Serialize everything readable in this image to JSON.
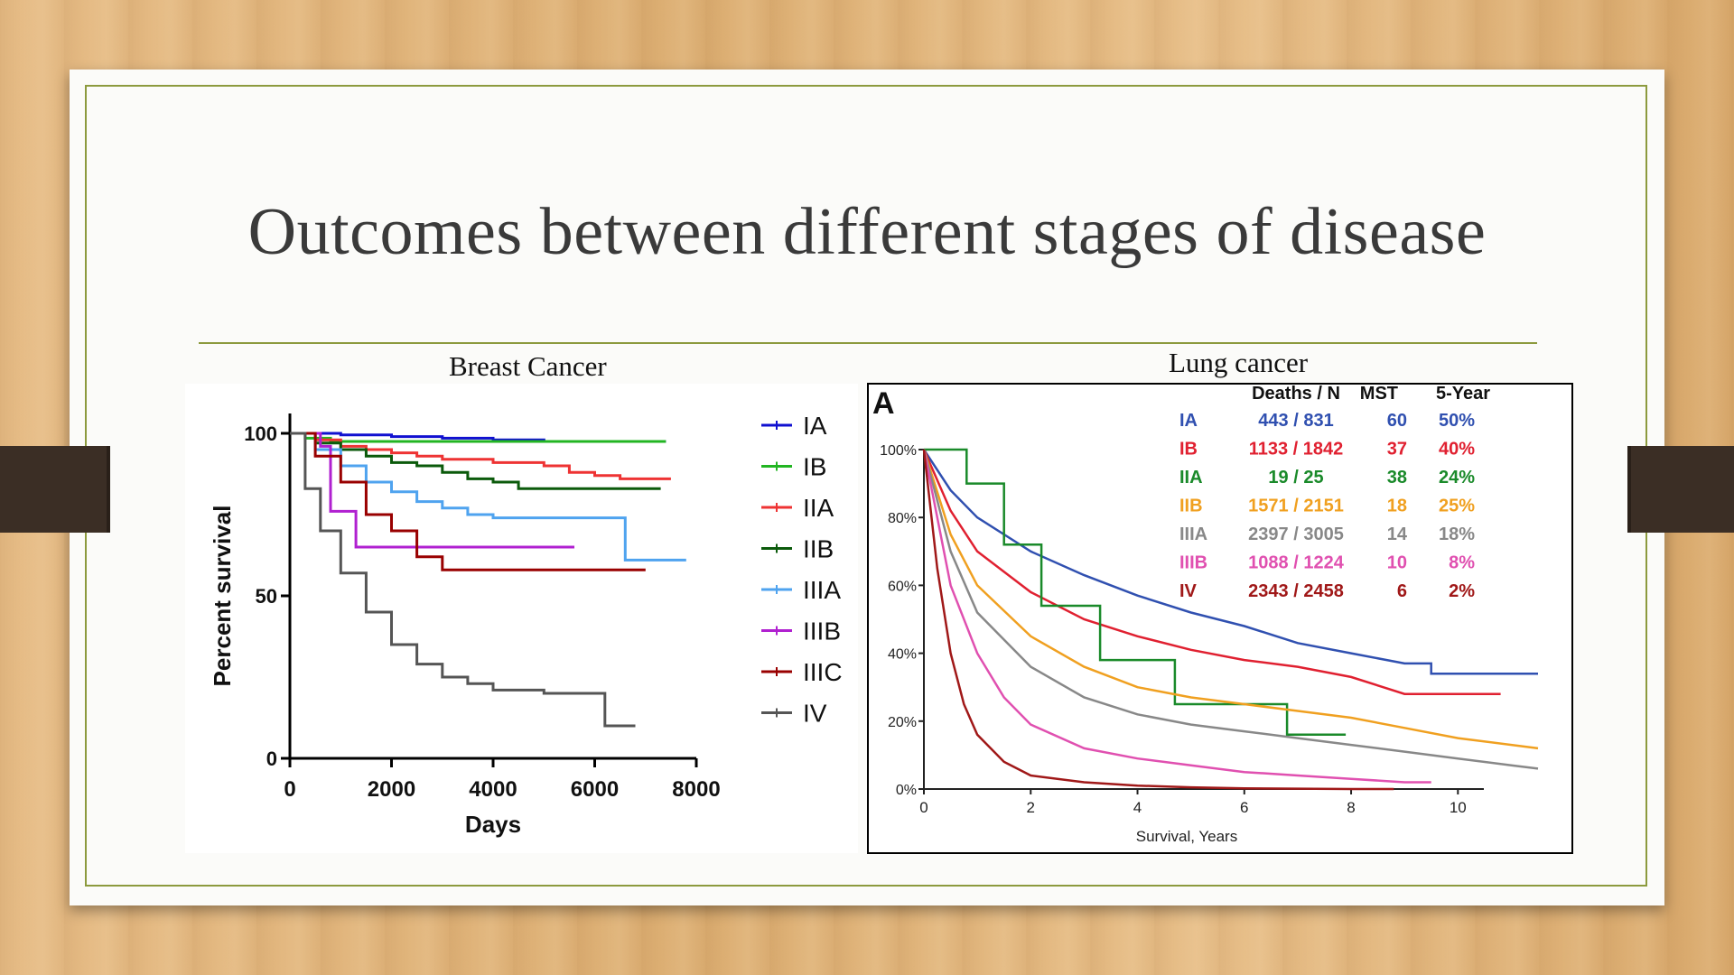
{
  "slide": {
    "title": "Outcomes between different stages of disease",
    "left_caption": "Breast Cancer",
    "right_caption": "Lung cancer"
  },
  "colors": {
    "frame": "#8c9a3e",
    "title": "#3a3a3a",
    "tab": "#3b2e25"
  },
  "chart_data": [
    {
      "type": "line",
      "caption": "Breast Cancer",
      "xlabel": "Days",
      "ylabel": "Percent survival",
      "xlim": [
        0,
        8000
      ],
      "ylim": [
        0,
        100
      ],
      "xticks": [
        0,
        2000,
        4000,
        6000,
        8000
      ],
      "yticks": [
        0,
        50,
        100
      ],
      "legend_position": "right",
      "series": [
        {
          "name": "IA",
          "color": "#1010d0",
          "x": [
            0,
            1000,
            2000,
            3000,
            4000,
            5000,
            6000,
            7400
          ],
          "y": [
            100,
            99.5,
            99,
            98.5,
            98,
            97.5,
            97.5,
            97.5
          ]
        },
        {
          "name": "IB",
          "color": "#22b522",
          "x": [
            0,
            300,
            800,
            1500,
            7400
          ],
          "y": [
            100,
            98.5,
            97.5,
            97.5,
            97.5
          ]
        },
        {
          "name": "IIA",
          "color": "#ee3333",
          "x": [
            0,
            500,
            1000,
            1500,
            2000,
            2500,
            3000,
            4000,
            5000,
            5500,
            6000,
            6500,
            7500
          ],
          "y": [
            100,
            98,
            96,
            95,
            94,
            93,
            92,
            91,
            90,
            88,
            87,
            86,
            86
          ]
        },
        {
          "name": "IIB",
          "color": "#0b5a0b",
          "x": [
            0,
            500,
            1000,
            1500,
            2000,
            2500,
            3000,
            3500,
            4000,
            4500,
            5000,
            7300
          ],
          "y": [
            100,
            97,
            95,
            93,
            91,
            90,
            88,
            86,
            85,
            83,
            83,
            83
          ]
        },
        {
          "name": "IIIA",
          "color": "#4fa3ef",
          "x": [
            0,
            500,
            1000,
            1500,
            2000,
            2500,
            3000,
            3500,
            4000,
            6600,
            6600,
            7800
          ],
          "y": [
            100,
            95,
            90,
            85,
            82,
            79,
            77,
            75,
            74,
            74,
            61,
            61
          ]
        },
        {
          "name": "IIIB",
          "color": "#b020d0",
          "x": [
            0,
            600,
            800,
            800,
            1300,
            1300,
            5600
          ],
          "y": [
            100,
            96,
            93,
            76,
            76,
            65,
            65
          ]
        },
        {
          "name": "IIIC",
          "color": "#990000",
          "x": [
            0,
            500,
            1000,
            1500,
            2000,
            2500,
            3000,
            4000,
            7000
          ],
          "y": [
            100,
            93,
            85,
            75,
            70,
            62,
            58,
            58,
            58
          ]
        },
        {
          "name": "IV",
          "color": "#555555",
          "x": [
            0,
            300,
            600,
            1000,
            1500,
            2000,
            2500,
            3000,
            3500,
            4000,
            5000,
            6200,
            6200,
            6800
          ],
          "y": [
            100,
            83,
            70,
            57,
            45,
            35,
            29,
            25,
            23,
            21,
            20,
            20,
            10,
            10
          ]
        }
      ]
    },
    {
      "type": "line",
      "caption": "Lung cancer",
      "panel_label": "A",
      "xlabel": "Survival, Years",
      "xlim": [
        0,
        11.5
      ],
      "ylim": [
        0,
        100
      ],
      "xticks": [
        0,
        2,
        4,
        6,
        8,
        10
      ],
      "yticks": [
        "0%",
        "20%",
        "40%",
        "60%",
        "80%",
        "100%"
      ],
      "table_headers": [
        "Deaths / N",
        "MST",
        "5-Year"
      ],
      "series": [
        {
          "name": "IA",
          "color": "#3050b0",
          "deaths_n": "443 / 831",
          "mst": "60",
          "five_year": "50%",
          "x": [
            0,
            0.5,
            1,
            2,
            3,
            4,
            5,
            6,
            7,
            8,
            9,
            9.5,
            9.5,
            11.5
          ],
          "y": [
            100,
            88,
            80,
            70,
            63,
            57,
            52,
            48,
            43,
            40,
            37,
            37,
            34,
            34
          ]
        },
        {
          "name": "IB",
          "color": "#e02030",
          "deaths_n": "1133 / 1842",
          "mst": "37",
          "five_year": "40%",
          "x": [
            0,
            0.5,
            1,
            2,
            3,
            4,
            5,
            6,
            7,
            8,
            9,
            10.8
          ],
          "y": [
            100,
            82,
            70,
            58,
            50,
            45,
            41,
            38,
            36,
            33,
            28,
            28
          ]
        },
        {
          "name": "IIA",
          "color": "#1a8a2a",
          "deaths_n": "19 / 25",
          "mst": "38",
          "five_year": "24%",
          "x": [
            0,
            0.8,
            0.8,
            1.5,
            1.5,
            2.2,
            2.2,
            3.3,
            3.3,
            4.7,
            4.7,
            6.8,
            6.8,
            7.9
          ],
          "y": [
            100,
            100,
            90,
            90,
            72,
            72,
            54,
            54,
            38,
            38,
            25,
            25,
            16,
            16
          ]
        },
        {
          "name": "IIB",
          "color": "#f0a020",
          "deaths_n": "1571 / 2151",
          "mst": "18",
          "five_year": "25%",
          "x": [
            0,
            0.5,
            1,
            2,
            3,
            4,
            5,
            6,
            7,
            8,
            9,
            10,
            11.5
          ],
          "y": [
            100,
            75,
            60,
            45,
            36,
            30,
            27,
            25,
            23,
            21,
            18,
            15,
            12
          ]
        },
        {
          "name": "IIIA",
          "color": "#888888",
          "deaths_n": "2397 / 3005",
          "mst": "14",
          "five_year": "18%",
          "x": [
            0,
            0.5,
            1,
            2,
            3,
            4,
            5,
            6,
            7,
            8,
            9,
            10,
            11,
            11.5
          ],
          "y": [
            100,
            70,
            52,
            36,
            27,
            22,
            19,
            17,
            15,
            13,
            11,
            9,
            7,
            6
          ]
        },
        {
          "name": "IIIB",
          "color": "#e050b0",
          "deaths_n": "1088 / 1224",
          "mst": "10",
          "five_year": "8%",
          "x": [
            0,
            0.5,
            1,
            1.5,
            2,
            3,
            4,
            5,
            6,
            7,
            8,
            9,
            9.5
          ],
          "y": [
            100,
            60,
            40,
            27,
            19,
            12,
            9,
            7,
            5,
            4,
            3,
            2,
            2
          ]
        },
        {
          "name": "IV",
          "color": "#a01818",
          "deaths_n": "2343 / 2458",
          "mst": "6",
          "five_year": "2%",
          "x": [
            0,
            0.25,
            0.5,
            0.75,
            1,
            1.5,
            2,
            3,
            4,
            5,
            6,
            8,
            8.8
          ],
          "y": [
            100,
            65,
            40,
            25,
            16,
            8,
            4,
            2,
            1,
            0.5,
            0.2,
            0,
            0
          ]
        }
      ]
    }
  ]
}
